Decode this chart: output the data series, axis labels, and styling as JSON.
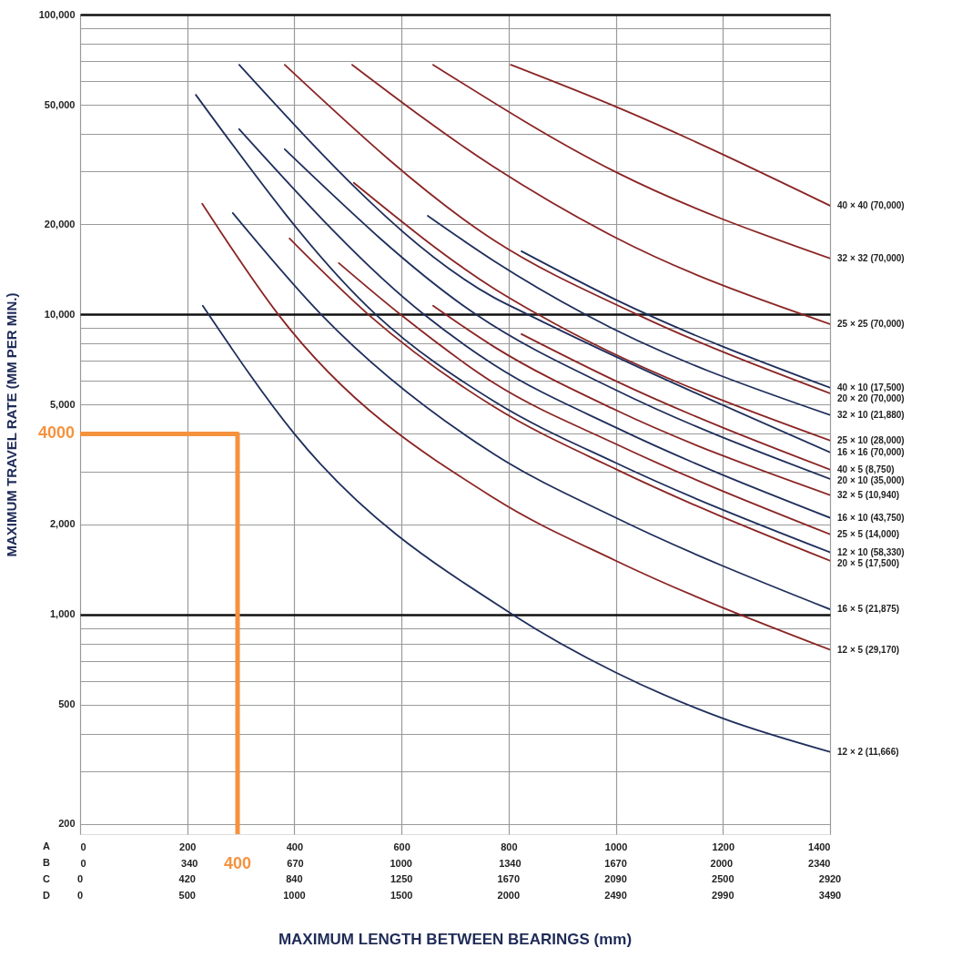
{
  "chart_data": {
    "type": "line",
    "xlabel": "MAXIMUM LENGTH BETWEEN BEARINGS (mm)",
    "ylabel": "MAXIMUM TRAVEL RATE (MM PER MIN.)",
    "log": true,
    "grid": true,
    "xlim": [
      0,
      1400
    ],
    "xticks": [
      0,
      200,
      400,
      600,
      800,
      1000,
      1200,
      1400
    ],
    "x2lim": [
      0,
      2340
    ],
    "x2ticks": [
      0,
      340,
      670,
      1000,
      1340,
      1670,
      2000,
      2340
    ],
    "ylim": [
      185,
      100000
    ],
    "yticks": [
      200,
      {
        "value": 300,
        "label": null
      },
      {
        "value": 400,
        "label": null
      },
      500,
      {
        "value": 600,
        "label": null
      },
      {
        "value": 700,
        "label": null
      },
      {
        "value": 800,
        "label": null
      },
      {
        "value": 900,
        "label": null
      },
      {
        "value": 1000,
        "label": "1,000"
      },
      {
        "value": 2000,
        "label": "2,000"
      },
      {
        "value": 3000,
        "label": null
      },
      {
        "value": 4000,
        "label": null
      },
      {
        "value": 5000,
        "label": "5,000"
      },
      {
        "value": 6000,
        "label": null
      },
      {
        "value": 7000,
        "label": null
      },
      {
        "value": 8000,
        "label": null
      },
      {
        "value": 9000,
        "label": null
      },
      {
        "value": 10000,
        "label": "10,000"
      },
      {
        "value": 20000,
        "label": "20,000"
      },
      {
        "value": 30000,
        "label": null
      },
      {
        "value": 40000,
        "label": null
      },
      {
        "value": 50000,
        "label": "50,000"
      },
      {
        "value": 60000,
        "label": null
      },
      {
        "value": 70000,
        "label": null
      },
      {
        "value": 80000,
        "label": null
      },
      {
        "value": 90000,
        "label": null
      },
      {
        "value": 100000,
        "label": "100,000"
      }
    ],
    "annotations": [
      "A",
      "B",
      "C",
      "0",
      "420",
      "840",
      "1250",
      "1670",
      "2090",
      "2500",
      "2920",
      "D",
      "0",
      "500",
      "1000",
      "1500",
      "2000",
      "2490",
      "2990",
      "3490",
      {
        "text": "4000",
        "x": 0,
        "y": 4000
      },
      {
        "text": "400",
        "x": 294,
        "y": 185
      }
    ],
    "series": [
      {
        "name": "40 × 40 (70,000)",
        "color": "#8b2525",
        "x": [
          804,
          1000,
          1400
        ],
        "values": [
          68000,
          49300,
          23060
        ]
      },
      {
        "name": "32 × 32 (70,000)",
        "color": "#8b2525",
        "x": [
          659,
          1000,
          1400
        ],
        "values": [
          68000,
          29850,
          15380
        ]
      },
      {
        "name": "25 × 25 (70,000)",
        "color": "#8b2525",
        "x": [
          508,
          773,
          1000,
          1400
        ],
        "values": [
          68000,
          31000,
          18030,
          9290
        ]
      },
      {
        "name": "40 × 10 (17,500)",
        "color": "#1f2f5c",
        "x": [
          824,
          1000,
          1400
        ],
        "values": [
          16250,
          11200,
          5700
        ]
      },
      {
        "name": "20 × 20 (70,000)",
        "color": "#8b2525",
        "x": [
          382,
          773,
          1040,
          1400
        ],
        "values": [
          68000,
          17660,
          10000,
          5460
        ]
      },
      {
        "name": "32 × 10 (21,880)",
        "color": "#1f2f5c",
        "x": [
          649,
          773,
          943,
          1400
        ],
        "values": [
          21330,
          15070,
          10000,
          4620
        ]
      },
      {
        "name": "25 × 10 (28,000)",
        "color": "#8b2525",
        "x": [
          511,
          773,
          855,
          1400
        ],
        "values": [
          27470,
          12200,
          10000,
          3800
        ]
      },
      {
        "name": "16 × 16 (70,000)",
        "color": "#1f2f5c",
        "x": [
          297,
          773,
          836,
          1400
        ],
        "values": [
          68000,
          11380,
          10000,
          3470
        ]
      },
      {
        "name": "40 × 5 (8,750)",
        "color": "#8b2525",
        "x": [
          824,
          1000,
          1400
        ],
        "values": [
          8600,
          6000,
          3040
        ]
      },
      {
        "name": "20 × 10 (35,000)",
        "color": "#1f2f5c",
        "x": [
          382,
          739,
          1000,
          1400
        ],
        "values": [
          35550,
          10000,
          5600,
          2830
        ]
      },
      {
        "name": "32 × 5 (10,940)",
        "color": "#8b2525",
        "x": [
          659,
          773,
          1000,
          1400
        ],
        "values": [
          10690,
          7800,
          4800,
          2500
        ]
      },
      {
        "name": "16 × 10 (43,750)",
        "color": "#1f2f5c",
        "x": [
          297,
          642,
          773,
          1000,
          1400
        ],
        "values": [
          41500,
          10000,
          6790,
          4200,
          2100
        ]
      },
      {
        "name": "25 × 5 (14,000)",
        "color": "#8b2525",
        "x": [
          483,
          598,
          773,
          1000,
          1400
        ],
        "values": [
          14840,
          10000,
          5900,
          3700,
          1850
        ]
      },
      {
        "name": "12 × 10 (58,330)",
        "color": "#1f2f5c",
        "x": [
          216,
          552,
          773,
          1000,
          1400
        ],
        "values": [
          54000,
          10000,
          5130,
          3200,
          1610
        ]
      },
      {
        "name": "20 × 5 (17,500)",
        "color": "#8b2525",
        "x": [
          391,
          538,
          773,
          1000,
          1400
        ],
        "values": [
          17910,
          10000,
          4920,
          3050,
          1510
        ]
      },
      {
        "name": "16 × 5 (21,875)",
        "color": "#1f2f5c",
        "x": [
          285,
          450,
          773,
          1000,
          1400
        ],
        "values": [
          21800,
          10000,
          3420,
          2100,
          1040
        ]
      },
      {
        "name": "12 × 5 (29,170)",
        "color": "#8b2525",
        "x": [
          228,
          370,
          773,
          1000,
          1400
        ],
        "values": [
          23390,
          10000,
          2440,
          1510,
          762
        ]
      },
      {
        "name": "12 × 2 (11,666)",
        "color": "#1f2f5c",
        "x": [
          229,
          400,
          807,
          1000,
          1200,
          1400
        ],
        "values": [
          10690,
          4000,
          1000,
          640,
          450,
          348
        ]
      },
      {
        "color": "#f5923e",
        "x": [
          0,
          294,
          294
        ],
        "values": [
          4000,
          4000,
          185
        ]
      }
    ]
  }
}
